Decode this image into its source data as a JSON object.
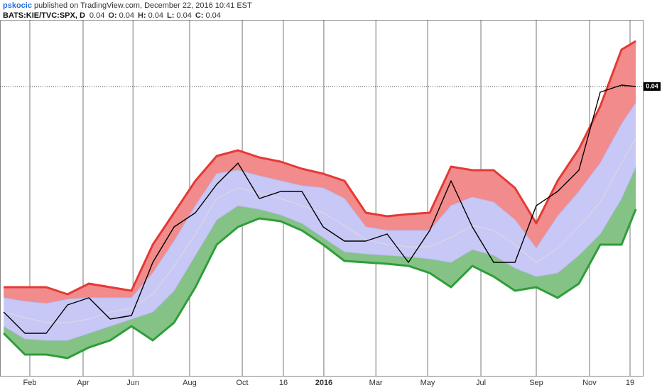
{
  "header": {
    "author": "pskocic",
    "published": "published on TradingView.com, December 22, 2016 10:41 EST",
    "symbol": "BATS:KIE/TVC:SPX, D",
    "last": 0.04,
    "ohlc": [
      {
        "label": "O:",
        "value": 0.04
      },
      {
        "label": "H:",
        "value": 0.04
      },
      {
        "label": "L:",
        "value": 0.04
      },
      {
        "label": "C:",
        "value": 0.04
      }
    ]
  },
  "chart_data": {
    "type": "line",
    "x": [
      0,
      1,
      2,
      3,
      4,
      5,
      6,
      7,
      8,
      9,
      10,
      11,
      12,
      13,
      14,
      15,
      16,
      17,
      18,
      19,
      20,
      21,
      22,
      23,
      24,
      25,
      26,
      27,
      28,
      29,
      29.67
    ],
    "xlim": [
      -0.17,
      30
    ],
    "xticks": [
      {
        "value": 1.23,
        "label": "Feb"
      },
      {
        "value": 3.73,
        "label": "Apr"
      },
      {
        "value": 6.07,
        "label": "Jun"
      },
      {
        "value": 8.73,
        "label": "Aug"
      },
      {
        "value": 11.2,
        "label": "Oct"
      },
      {
        "value": 13.13,
        "label": "16"
      },
      {
        "value": 15.03,
        "label": "2016"
      },
      {
        "value": 17.47,
        "label": "Mar"
      },
      {
        "value": 19.9,
        "label": "May"
      },
      {
        "value": 22.4,
        "label": "Jul"
      },
      {
        "value": 25,
        "label": "Sep"
      },
      {
        "value": 27.5,
        "label": "Nov"
      },
      {
        "value": 29.4,
        "label": "19"
      }
    ],
    "ylim": [
      0.03184,
      0.04188
    ],
    "last_value": 0.04,
    "grid": true,
    "series": [
      {
        "color": "#e53935",
        "values": [
          0.03434,
          0.03434,
          0.03434,
          0.03414,
          0.03444,
          0.03434,
          0.03424,
          0.03554,
          0.03644,
          0.03734,
          0.03804,
          0.0382,
          0.038,
          0.03788,
          0.03768,
          0.03754,
          0.03734,
          0.03644,
          0.03634,
          0.0364,
          0.03644,
          0.03774,
          0.03764,
          0.03764,
          0.03714,
          0.03614,
          0.03734,
          0.03824,
          0.03944,
          0.04104,
          0.04128
        ]
      },
      {
        "color": "#b9b9f2",
        "values": [
          0.03404,
          0.03394,
          0.03388,
          0.034,
          0.03404,
          0.03404,
          0.03404,
          0.03474,
          0.03564,
          0.03664,
          0.03754,
          0.03764,
          0.03748,
          0.03734,
          0.0372,
          0.03714,
          0.03684,
          0.03604,
          0.03594,
          0.03594,
          0.03594,
          0.03664,
          0.03688,
          0.03674,
          0.03624,
          0.03544,
          0.03634,
          0.03704,
          0.03784,
          0.03894,
          0.03954
        ]
      },
      {
        "color": "#d8d8e4",
        "values": [
          0.03364,
          0.03348,
          0.03334,
          0.03334,
          0.03344,
          0.03364,
          0.03374,
          0.03414,
          0.03494,
          0.03584,
          0.03684,
          0.03714,
          0.037,
          0.03684,
          0.03664,
          0.03644,
          0.03608,
          0.03568,
          0.03554,
          0.03548,
          0.03548,
          0.03574,
          0.03608,
          0.03594,
          0.03554,
          0.03504,
          0.03544,
          0.03604,
          0.03674,
          0.03784,
          0.03854
        ]
      },
      {
        "color": "#b9b9f2",
        "values": [
          0.03324,
          0.03288,
          0.03284,
          0.03284,
          0.03304,
          0.03324,
          0.03344,
          0.03364,
          0.03424,
          0.03524,
          0.03624,
          0.03664,
          0.03654,
          0.03638,
          0.03614,
          0.03574,
          0.03534,
          0.03528,
          0.03524,
          0.0352,
          0.03514,
          0.03504,
          0.0354,
          0.03524,
          0.03488,
          0.03464,
          0.03474,
          0.03524,
          0.03584,
          0.03684,
          0.03774
        ]
      },
      {
        "color": "#2e9e3a",
        "values": [
          0.03304,
          0.03244,
          0.03244,
          0.03234,
          0.03264,
          0.03284,
          0.03324,
          0.03284,
          0.03334,
          0.03434,
          0.03554,
          0.03604,
          0.03628,
          0.0362,
          0.03594,
          0.03554,
          0.03508,
          0.03504,
          0.035,
          0.03494,
          0.03474,
          0.03434,
          0.03494,
          0.03464,
          0.03424,
          0.03434,
          0.03404,
          0.03444,
          0.03554,
          0.03554,
          0.03654
        ]
      },
      {
        "color": "#000000",
        "values": [
          0.03364,
          0.03304,
          0.03304,
          0.03384,
          0.03404,
          0.03344,
          0.03354,
          0.03504,
          0.03604,
          0.03644,
          0.03724,
          0.03784,
          0.03684,
          0.03704,
          0.03704,
          0.03604,
          0.03564,
          0.03564,
          0.03584,
          0.03504,
          0.03594,
          0.03734,
          0.03604,
          0.03504,
          0.03504,
          0.03664,
          0.03704,
          0.03764,
          0.03984,
          0.04004,
          0.04
        ]
      }
    ],
    "fills": [
      "#f28b8b",
      "#c8c8f6",
      "#85c285"
    ]
  }
}
